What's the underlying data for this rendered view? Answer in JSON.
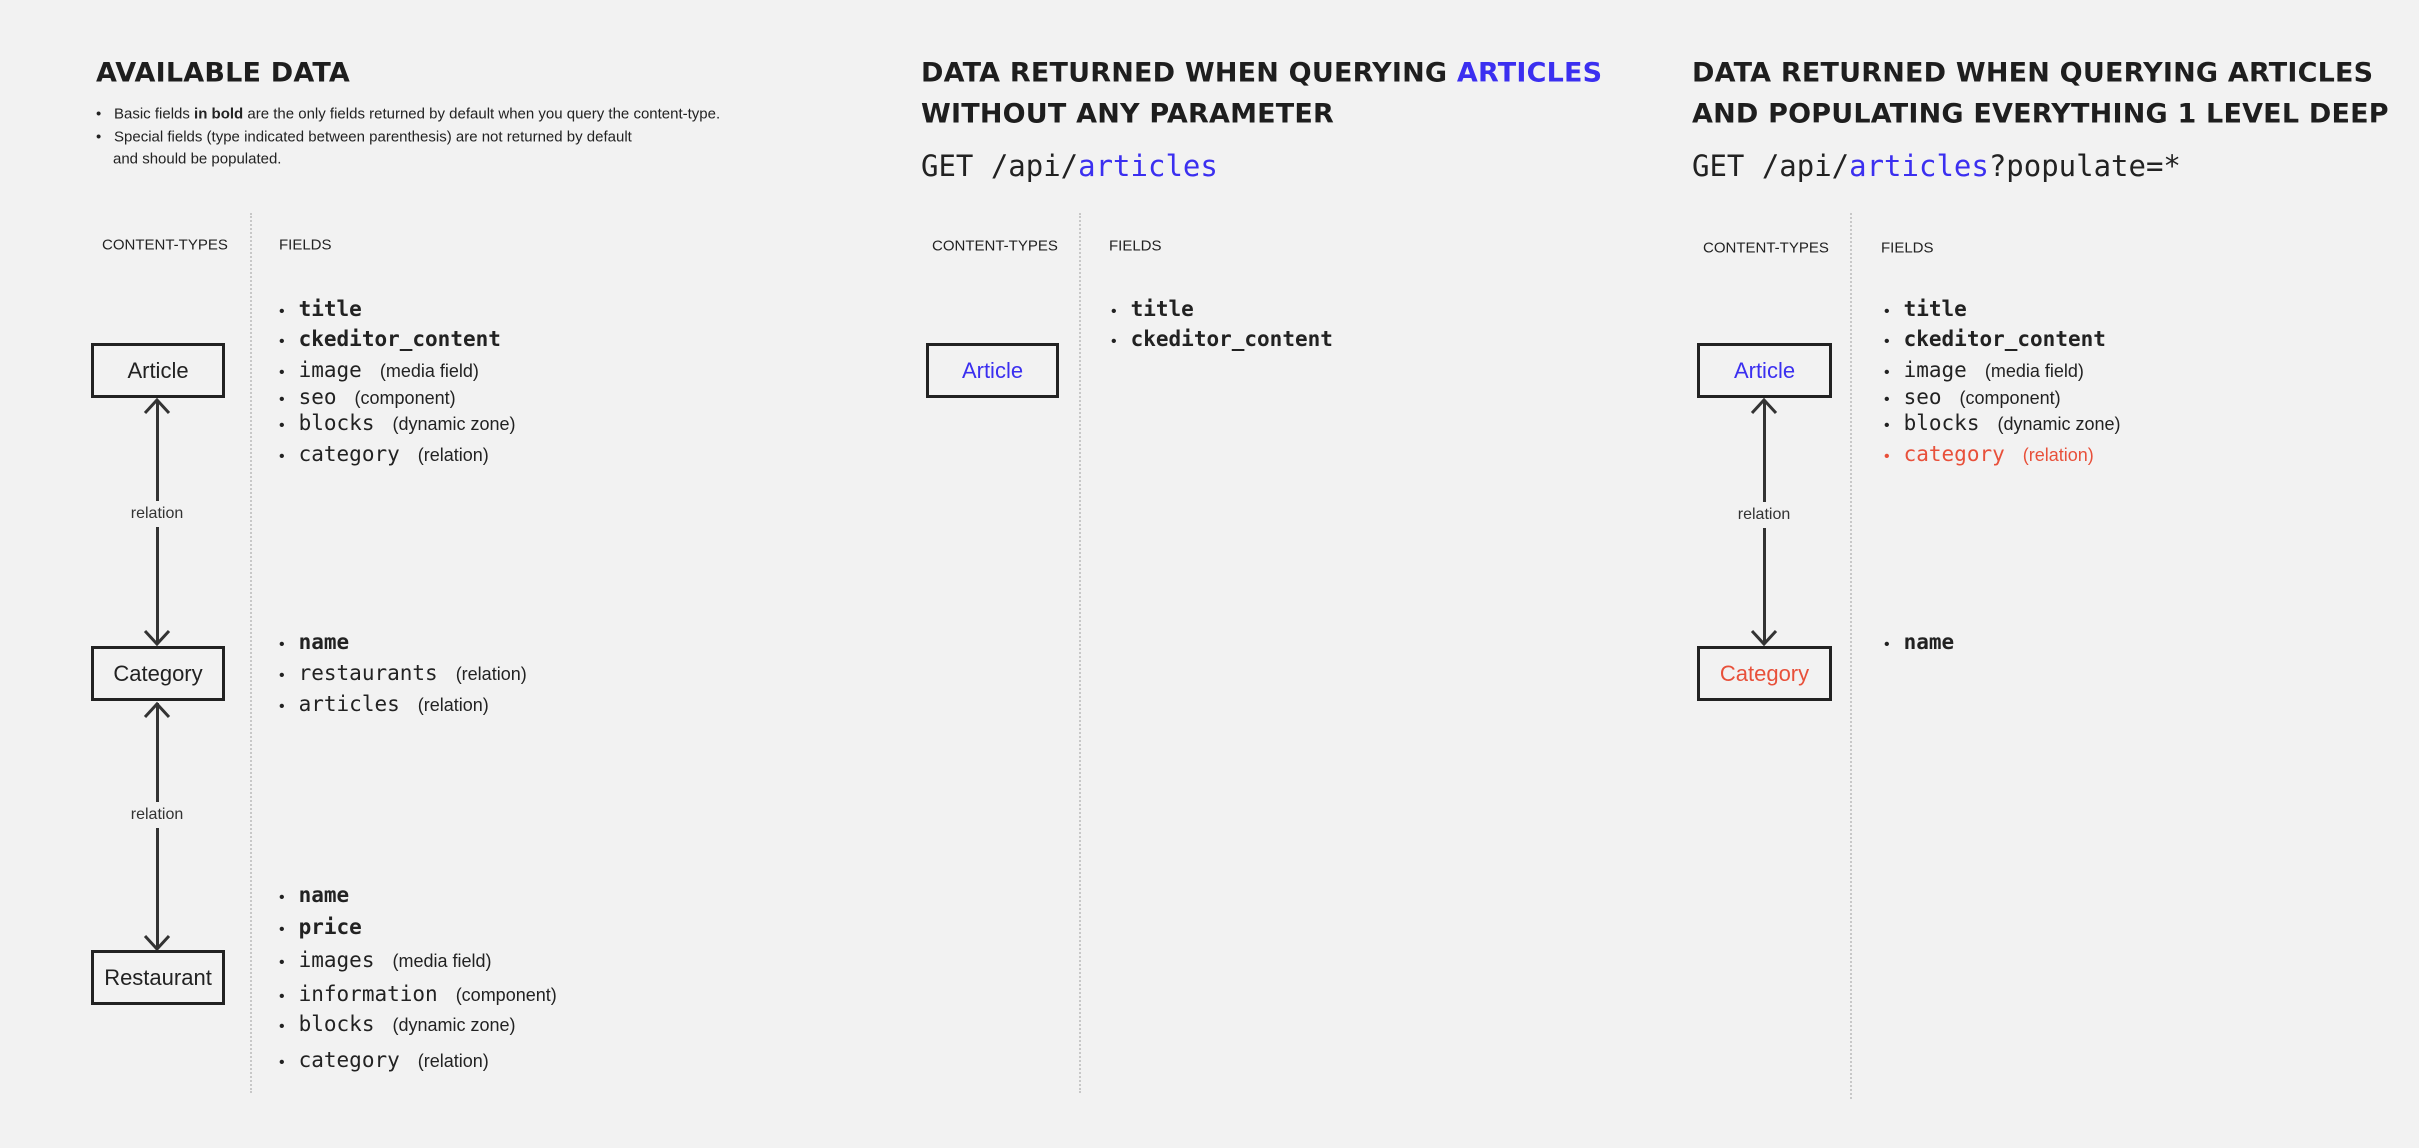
{
  "colors": {
    "background": "#f2f2f2",
    "text": "#222222",
    "accent_blue": "#3b2ff0",
    "highlight_red": "#e8503a"
  },
  "col1": {
    "title": "AVAILABLE DATA",
    "notes": [
      {
        "before": "Basic fields ",
        "bold": "in bold",
        "after": " are the only fields returned by default when you query the content-type."
      },
      {
        "before": "Special fields (type indicated between parenthesis) are not returned by default",
        "bold": "",
        "after": ""
      },
      {
        "before": "and should be populated.",
        "bold": "",
        "after": ""
      }
    ],
    "hdr_types": "CONTENT-TYPES",
    "hdr_fields": "FIELDS",
    "boxes": [
      "Article",
      "Category",
      "Restaurant"
    ],
    "relation_label": "relation",
    "fields": {
      "article": [
        {
          "name": "title",
          "type": "",
          "bold": true
        },
        {
          "name": "ckeditor_content",
          "type": "",
          "bold": true
        },
        {
          "name": "image",
          "type": "(media field)"
        },
        {
          "name": "seo",
          "type": "(component)"
        },
        {
          "name": "blocks",
          "type": "(dynamic zone)"
        },
        {
          "name": "category",
          "type": "(relation)"
        }
      ],
      "category": [
        {
          "name": "name",
          "type": "",
          "bold": true
        },
        {
          "name": "restaurants",
          "type": "(relation)"
        },
        {
          "name": "articles",
          "type": "(relation)"
        }
      ],
      "restaurant": [
        {
          "name": "name",
          "type": "",
          "bold": true
        },
        {
          "name": "price",
          "type": "",
          "bold": true
        },
        {
          "name": "images",
          "type": "(media field)"
        },
        {
          "name": "information",
          "type": "(component)"
        },
        {
          "name": "blocks",
          "type": "(dynamic zone)"
        },
        {
          "name": "category",
          "type": "(relation)"
        }
      ]
    }
  },
  "col2": {
    "title_line1_prefix": "DATA RETURNED WHEN QUERYING ",
    "title_line1_highlight": "ARTICLES",
    "title_line2": "WITHOUT ANY PARAMETER",
    "get_prefix": "GET /api/",
    "get_resource": "articles",
    "hdr_types": "CONTENT-TYPES",
    "hdr_fields": "FIELDS",
    "box": "Article",
    "fields": [
      {
        "name": "title",
        "type": "",
        "bold": true
      },
      {
        "name": "ckeditor_content",
        "type": "",
        "bold": true
      }
    ]
  },
  "col3": {
    "title_line1": "DATA RETURNED WHEN QUERYING ARTICLES",
    "title_line2": "AND POPULATING EVERYTHING 1 LEVEL DEEP",
    "get_prefix": "GET /api/",
    "get_resource": "articles",
    "get_query": "?populate=*",
    "hdr_types": "CONTENT-TYPES",
    "hdr_fields": "FIELDS",
    "boxes": [
      "Article",
      "Category"
    ],
    "relation_label": "relation",
    "fields": {
      "article": [
        {
          "name": "title",
          "type": "",
          "bold": true
        },
        {
          "name": "ckeditor_content",
          "type": "",
          "bold": true
        },
        {
          "name": "image",
          "type": "(media field)"
        },
        {
          "name": "seo",
          "type": "(component)"
        },
        {
          "name": "blocks",
          "type": "(dynamic zone)"
        },
        {
          "name": "category",
          "type": "(relation)",
          "highlight": true
        }
      ],
      "category": [
        {
          "name": "name",
          "type": "",
          "bold": true
        }
      ]
    }
  }
}
